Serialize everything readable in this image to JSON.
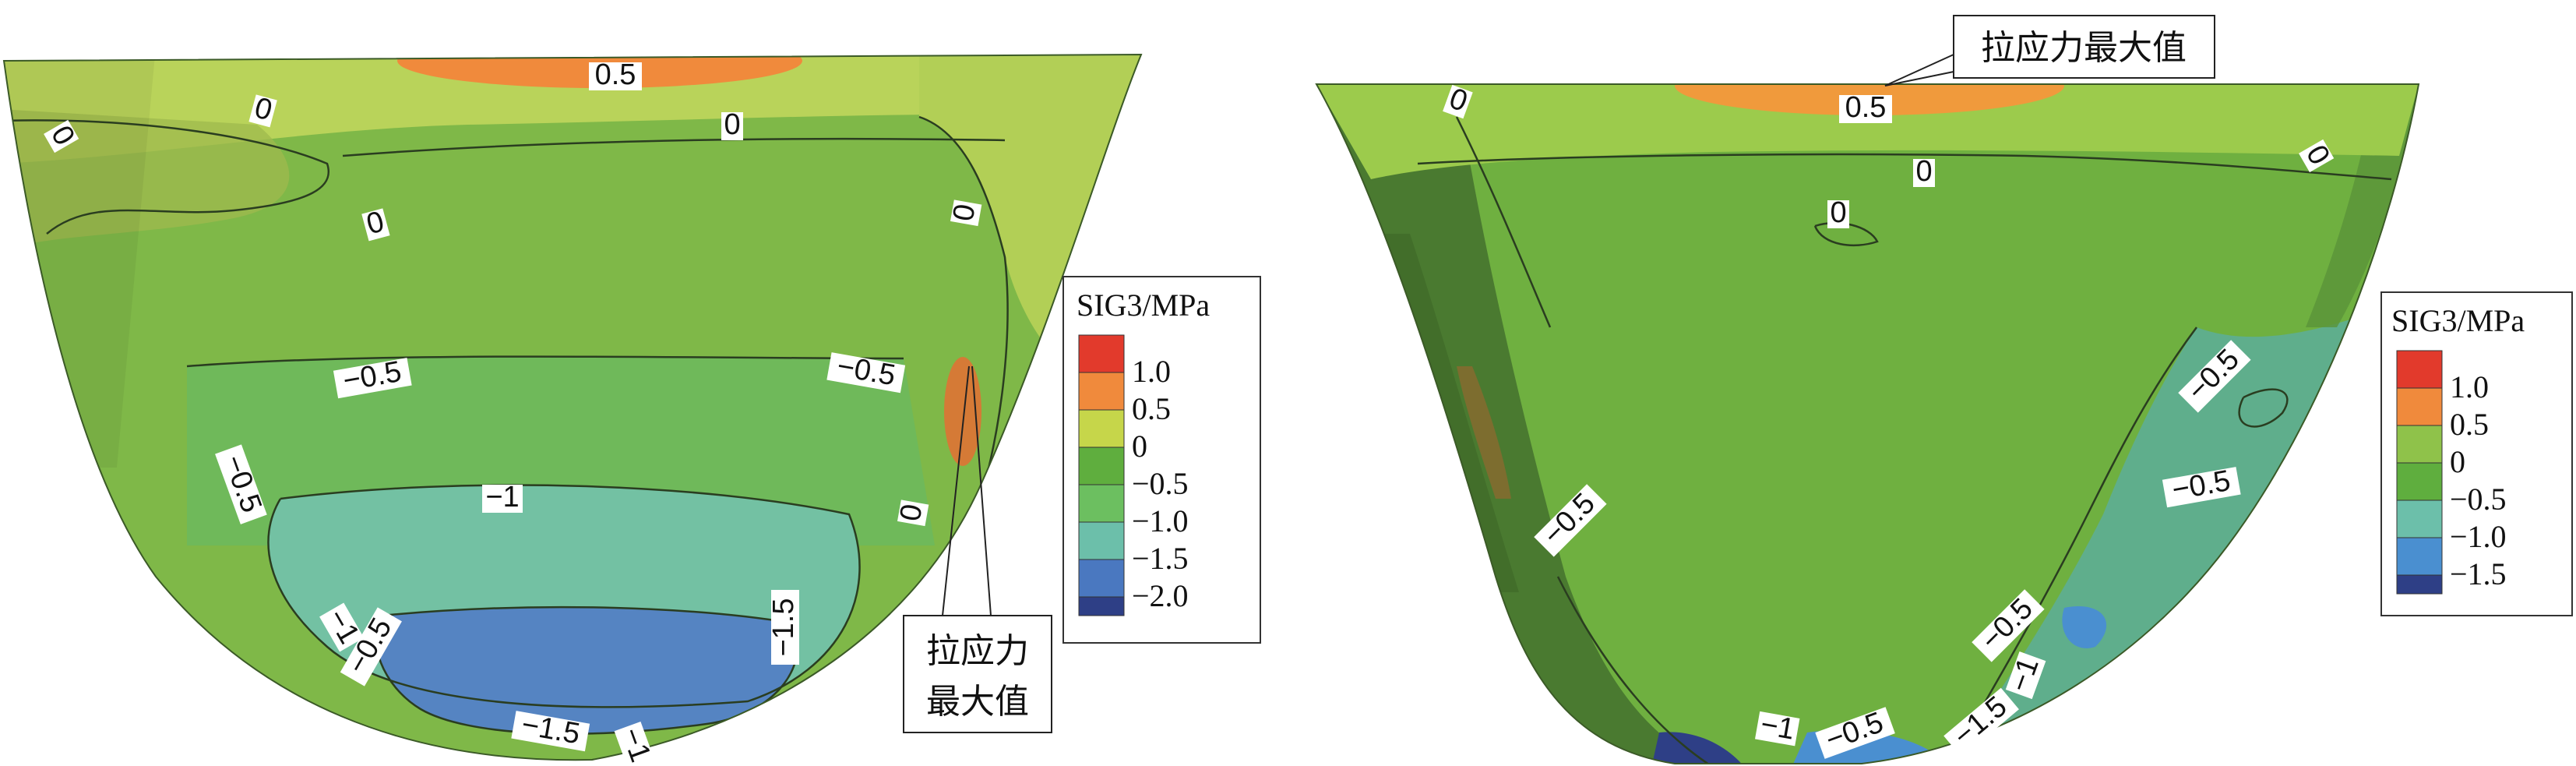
{
  "left_panel": {
    "legend": {
      "title": "SIG3/MPa",
      "items": [
        {
          "label": "1.0",
          "color": "#e23a2c"
        },
        {
          "label": "0.5",
          "color": "#f08a3c"
        },
        {
          "label": "0",
          "color": "#c6d64a"
        },
        {
          "label": "−0.5",
          "color": "#5fae3e"
        },
        {
          "label": "−1.0",
          "color": "#6cbf60"
        },
        {
          "label": "−1.5",
          "color": "#6cbfaa"
        },
        {
          "label": "−2.0",
          "color": "#4a78c0"
        }
      ],
      "bottom_swatch_color": "#2e3f86"
    },
    "callout": {
      "line1": "拉应力",
      "line2": "最大值"
    },
    "contour_labels": [
      "0.5",
      "0",
      "0",
      "0",
      "0",
      "0",
      "−0.5",
      "−0.5",
      "−0.5",
      "−1",
      "−1.5",
      "−1.5",
      "−0.5",
      "−1",
      "0",
      "−1"
    ]
  },
  "right_panel": {
    "legend": {
      "title": "SIG3/MPa",
      "items": [
        {
          "label": "1.0",
          "color": "#e23a2c"
        },
        {
          "label": "0.5",
          "color": "#f08a3c"
        },
        {
          "label": "0",
          "color": "#8fc24a"
        },
        {
          "label": "−0.5",
          "color": "#5fae3e"
        },
        {
          "label": "−1.0",
          "color": "#6cbfaa"
        },
        {
          "label": "−1.5",
          "color": "#4a8fd0"
        }
      ],
      "bottom_swatch_color": "#2e3f86"
    },
    "callout": {
      "text": "拉应力最大值"
    },
    "contour_labels": [
      "0.5",
      "0",
      "0",
      "0",
      "−0.5",
      "−0.5",
      "−0.5",
      "−0.5",
      "−1",
      "−0.5",
      "−1.5",
      "−1"
    ]
  }
}
